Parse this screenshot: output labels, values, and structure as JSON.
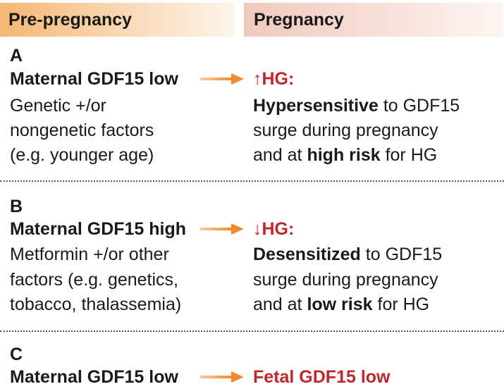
{
  "headers": {
    "pre_pregnancy": "Pre-pregnancy",
    "pregnancy": "Pregnancy"
  },
  "panel_a": {
    "letter": "A",
    "cause_title": "Maternal GDF15 low",
    "cause_lines": [
      "Genetic +/or",
      "nongenetic factors",
      "(e.g. younger age)"
    ],
    "effect_arrow": "↑",
    "effect_title": "HG:",
    "effect_line1_bold": "Hypersensitive",
    "effect_line1_rest": " to GDF15",
    "effect_line2": "surge during pregnancy",
    "effect_line3_pre": "and at ",
    "effect_line3_bold": "high risk",
    "effect_line3_post": " for HG"
  },
  "panel_b": {
    "letter": "B",
    "cause_title": "Maternal GDF15 high",
    "cause_lines": [
      "Metformin +/or other",
      "factors (e.g. genetics,",
      "tobacco, thalassemia)"
    ],
    "effect_arrow": "↓",
    "effect_title": "HG:",
    "effect_line1_bold": "Desensitized",
    "effect_line1_rest": " to GDF15",
    "effect_line2": "surge during pregnancy",
    "effect_line3_pre": "and at ",
    "effect_line3_bold": "low risk",
    "effect_line3_post": " for HG"
  },
  "panel_c": {
    "letter": "C",
    "cause_title": "Maternal GDF15 low",
    "effect_title": "Fetal GDF15 low"
  },
  "colors": {
    "arrow": "#f08a2c",
    "highlight_red": "#c0262d"
  }
}
